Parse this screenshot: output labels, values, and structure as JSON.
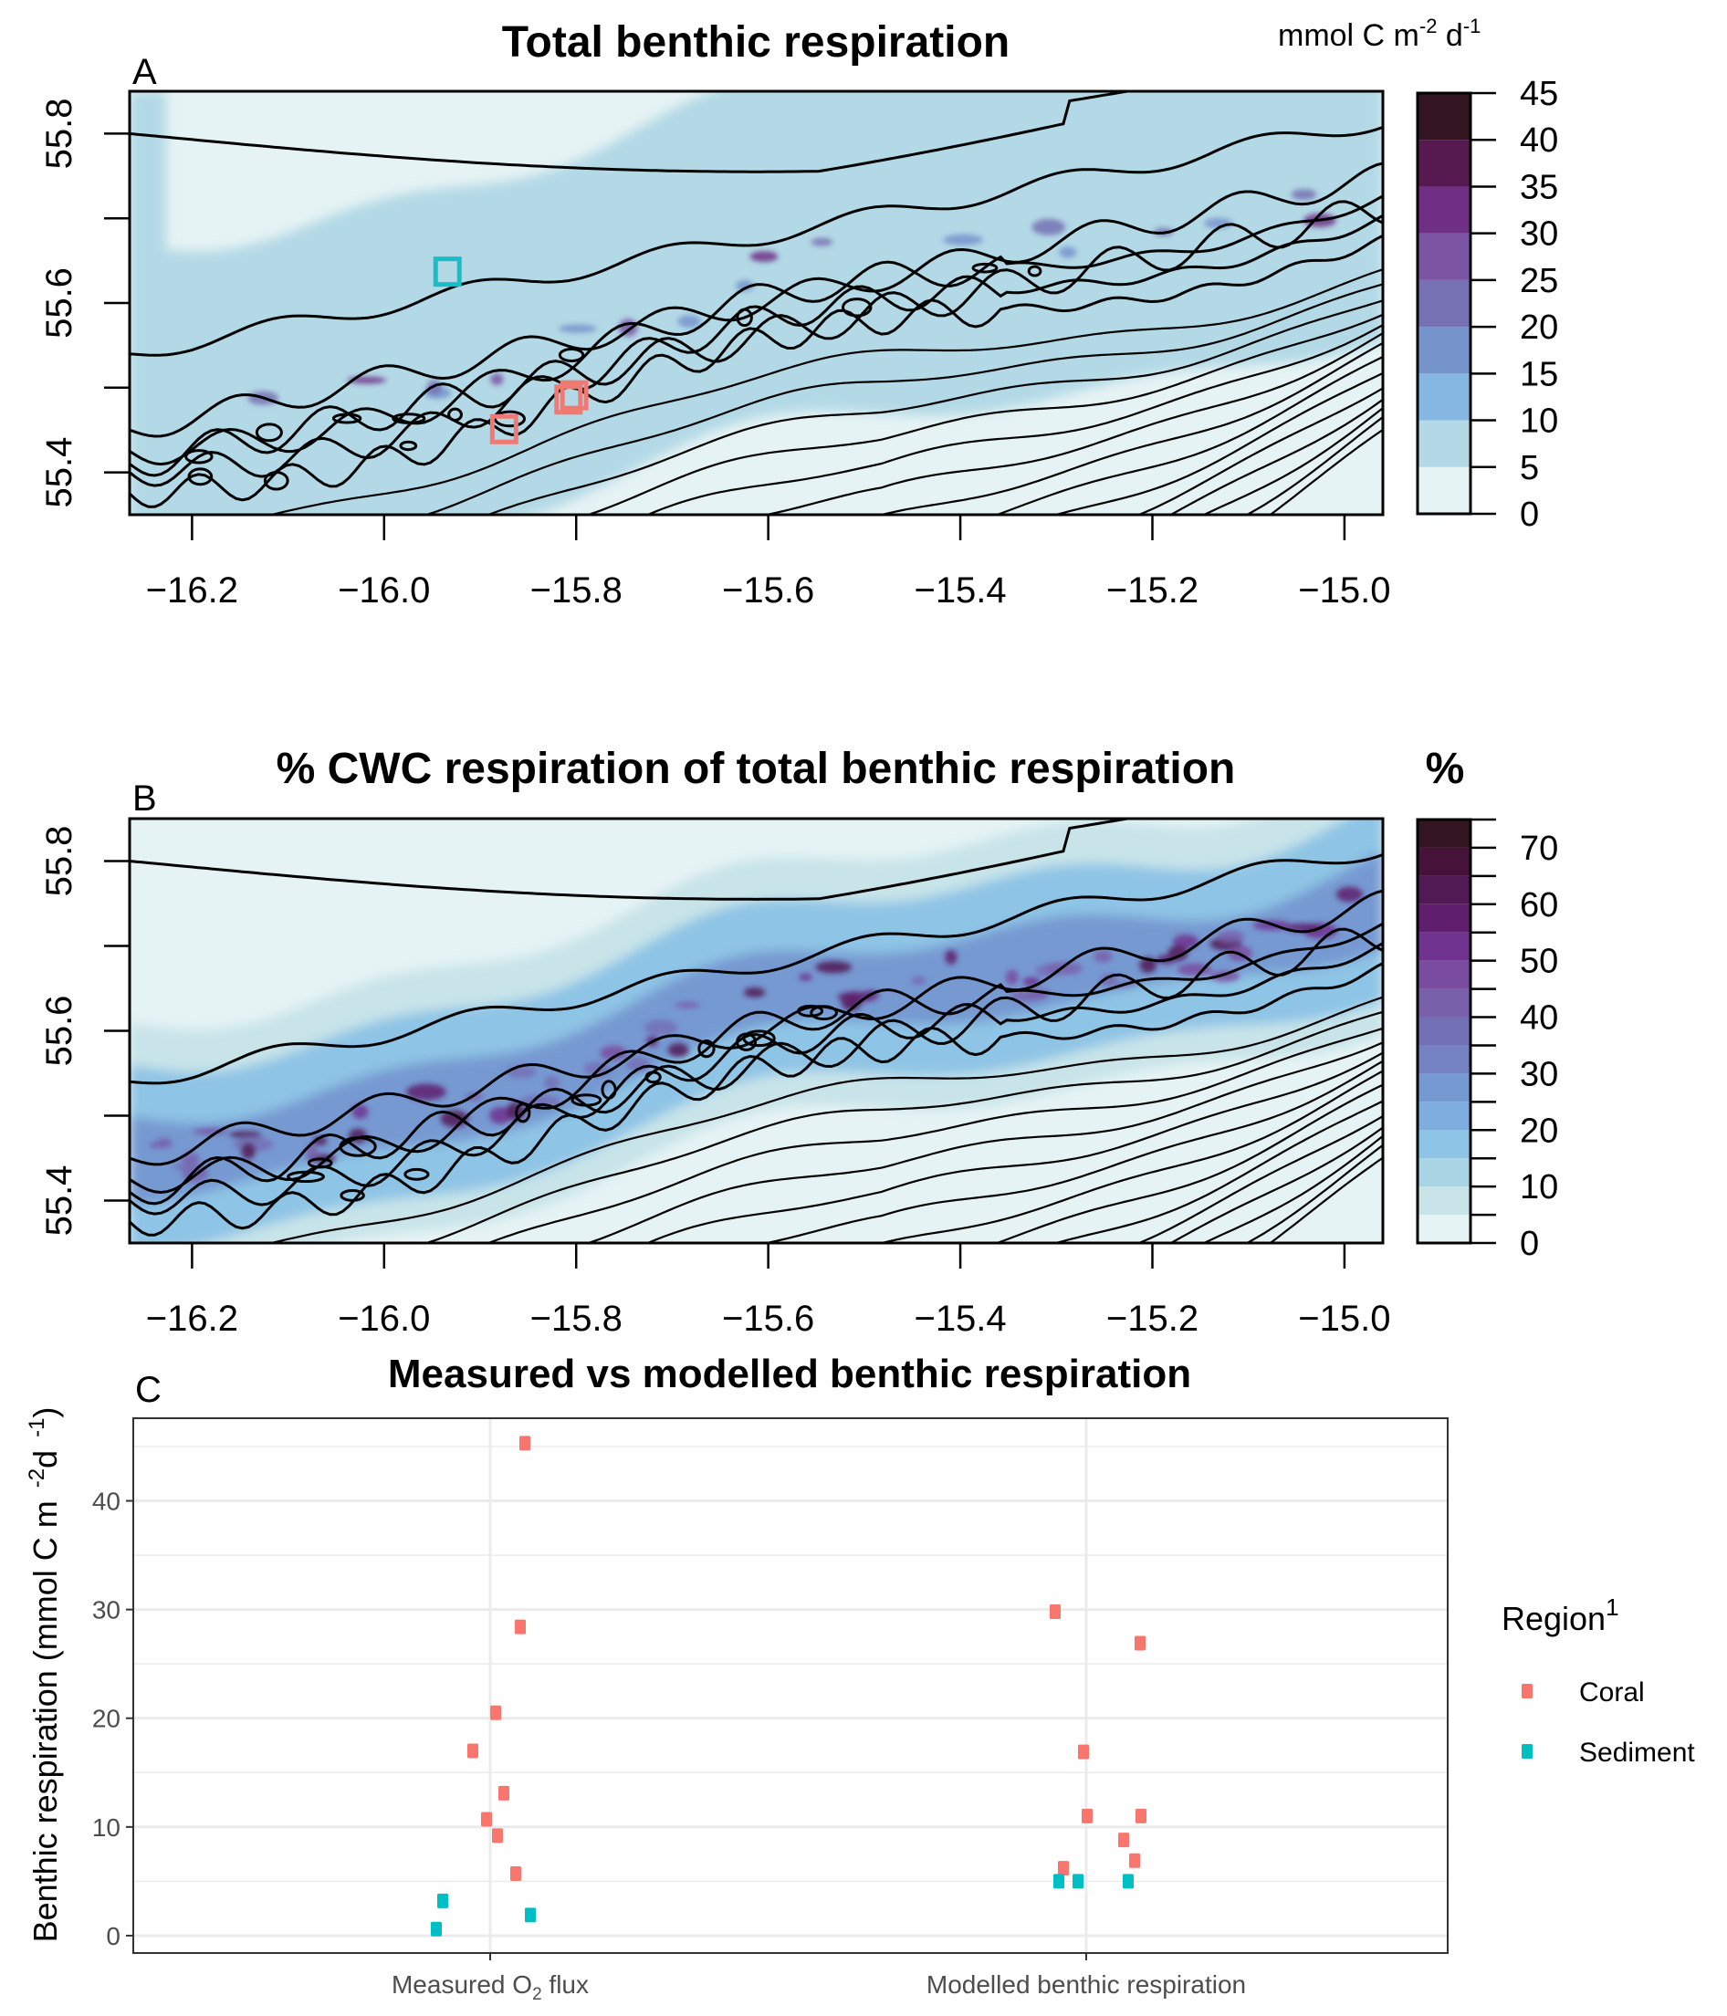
{
  "figure": {
    "panels": [
      "A",
      "B",
      "C"
    ]
  },
  "chart_data": [
    {
      "type": "heatmap",
      "panel_label": "A",
      "title": "Total benthic respiration",
      "colorbar_title": "mmol C m",
      "colorbar_title_sup1": "-2",
      "colorbar_title_mid": " d",
      "colorbar_title_sup2": "-1",
      "xlabel": "",
      "ylabel": "",
      "x_ticks": [
        "-16.2",
        "-16.0",
        "-15.8",
        "-15.6",
        "-15.4",
        "-15.2",
        "-15.0"
      ],
      "x_tick_values": [
        -16.2,
        -16.0,
        -15.8,
        -15.6,
        -15.4,
        -15.2,
        -15.0
      ],
      "y_ticks": [
        "55.4",
        "55.6",
        "55.8"
      ],
      "y_tick_values": [
        55.4,
        55.5,
        55.6,
        55.7,
        55.8
      ],
      "xlim": [
        -16.265,
        -14.96
      ],
      "ylim": [
        55.35,
        55.85
      ],
      "colorbar": {
        "breaks": [
          0,
          5,
          10,
          15,
          20,
          25,
          30,
          35,
          40,
          45
        ],
        "tick_labels": [
          "0",
          "5",
          "10",
          "15",
          "20",
          "25",
          "30",
          "35",
          "40",
          "45"
        ],
        "colors": [
          "#e6f3f4",
          "#b3d9e6",
          "#86b7e3",
          "#7694cc",
          "#7571b3",
          "#7b54a3",
          "#6e2f85",
          "#561a51",
          "#331522"
        ]
      },
      "markers": [
        {
          "region": "Sediment",
          "lon": -15.934,
          "lat": 55.637,
          "color": "#17bec4"
        },
        {
          "region": "Coral",
          "lon": -15.802,
          "lat": 55.491,
          "color": "#f07a73"
        },
        {
          "region": "Coral",
          "lon": -15.808,
          "lat": 55.486,
          "color": "#f07a73"
        },
        {
          "region": "Coral",
          "lon": -15.875,
          "lat": 55.451,
          "color": "#f07a73"
        }
      ],
      "contours": "bathymetry isolines (black)",
      "grid": false
    },
    {
      "type": "heatmap",
      "panel_label": "B",
      "title": "% CWC respiration of total benthic respiration",
      "colorbar_title": "%",
      "x_ticks": [
        "-16.2",
        "-16.0",
        "-15.8",
        "-15.6",
        "-15.4",
        "-15.2",
        "-15.0"
      ],
      "x_tick_values": [
        -16.2,
        -16.0,
        -15.8,
        -15.6,
        -15.4,
        -15.2,
        -15.0
      ],
      "y_ticks": [
        "55.4",
        "55.6",
        "55.8"
      ],
      "y_tick_values": [
        55.4,
        55.5,
        55.6,
        55.7,
        55.8
      ],
      "xlim": [
        -16.265,
        -14.96
      ],
      "ylim": [
        55.35,
        55.85
      ],
      "colorbar": {
        "breaks": [
          0,
          5,
          10,
          15,
          20,
          25,
          30,
          35,
          40,
          45,
          50,
          55,
          60,
          65,
          70,
          75
        ],
        "tick_labels": [
          "0",
          "10",
          "20",
          "30",
          "40",
          "50",
          "60",
          "70"
        ],
        "tick_label_values": [
          0,
          10,
          20,
          30,
          40,
          50,
          60,
          70
        ],
        "colors": [
          "#e6f3f4",
          "#c8e4e9",
          "#a9d4e4",
          "#8ec4e5",
          "#80addf",
          "#7699d1",
          "#7482c1",
          "#7470b5",
          "#7860ab",
          "#7a4ca0",
          "#703490",
          "#5f1f6e",
          "#521a55",
          "#45133a",
          "#331522"
        ]
      },
      "contours": "bathymetry isolines (black)",
      "grid": false
    },
    {
      "type": "scatter",
      "panel_label": "C",
      "title": "Measured vs modelled benthic respiration",
      "xlabel": "",
      "ylabel": "Benthic respiration (mmol C m",
      "ylabel_sup1": "-2",
      "ylabel_mid": "d",
      "ylabel_sup2": "-1",
      "ylabel_end": ")",
      "categories": [
        "Measured O2 flux",
        "Modelled benthic respiration"
      ],
      "category_labels": [
        {
          "pre": "Measured O",
          "sub": "2",
          "post": " flux"
        },
        {
          "pre": "Modelled benthic respiration",
          "sub": "",
          "post": ""
        }
      ],
      "y_ticks": [
        0,
        10,
        20,
        30,
        40
      ],
      "ylim": [
        -1.6,
        47.6
      ],
      "grid": true,
      "legend": {
        "title": "Region",
        "title_sup": "1",
        "position": "right",
        "entries": [
          {
            "name": "Coral",
            "color": "#f8766d"
          },
          {
            "name": "Sediment",
            "color": "#00bfc4"
          }
        ]
      },
      "series": [
        {
          "name": "Coral",
          "color": "#f8766d",
          "points": [
            {
              "category": "Measured O2 flux",
              "y": 45.3
            },
            {
              "category": "Measured O2 flux",
              "y": 28.4
            },
            {
              "category": "Measured O2 flux",
              "y": 20.5
            },
            {
              "category": "Measured O2 flux",
              "y": 17.0
            },
            {
              "category": "Measured O2 flux",
              "y": 13.1
            },
            {
              "category": "Measured O2 flux",
              "y": 10.7
            },
            {
              "category": "Measured O2 flux",
              "y": 9.2
            },
            {
              "category": "Measured O2 flux",
              "y": 5.7
            },
            {
              "category": "Modelled benthic respiration",
              "y": 29.8
            },
            {
              "category": "Modelled benthic respiration",
              "y": 26.9
            },
            {
              "category": "Modelled benthic respiration",
              "y": 16.9
            },
            {
              "category": "Modelled benthic respiration",
              "y": 11.0
            },
            {
              "category": "Modelled benthic respiration",
              "y": 11.0
            },
            {
              "category": "Modelled benthic respiration",
              "y": 8.8
            },
            {
              "category": "Modelled benthic respiration",
              "y": 6.9
            },
            {
              "category": "Modelled benthic respiration",
              "y": 6.2
            }
          ]
        },
        {
          "name": "Sediment",
          "color": "#00bfc4",
          "points": [
            {
              "category": "Measured O2 flux",
              "y": 3.2
            },
            {
              "category": "Measured O2 flux",
              "y": 1.9
            },
            {
              "category": "Measured O2 flux",
              "y": 0.6
            },
            {
              "category": "Modelled benthic respiration",
              "y": 5.0
            },
            {
              "category": "Modelled benthic respiration",
              "y": 5.0
            },
            {
              "category": "Modelled benthic respiration",
              "y": 5.0
            }
          ]
        }
      ]
    }
  ]
}
